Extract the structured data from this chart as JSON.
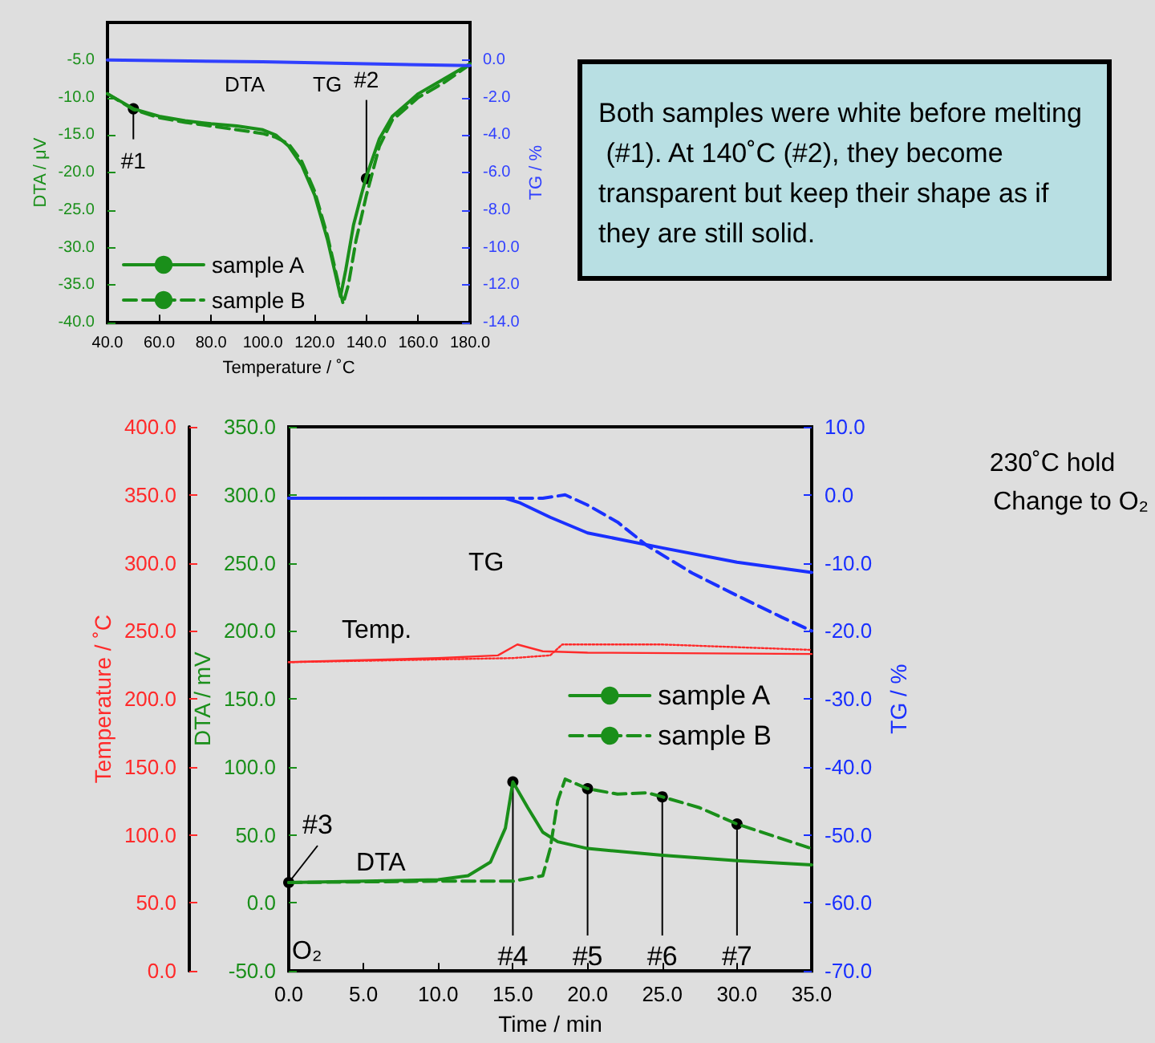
{
  "chart_data": [
    {
      "type": "line",
      "xlabel": "Temperature / ˚C",
      "ylabel": "DTA / μV",
      "y2label": "TG / %",
      "legend": "bottom left",
      "grid": false,
      "marker": "none",
      "xlim": [
        40,
        180
      ],
      "xticks": [
        {
          "value": 40,
          "label": "40.0"
        },
        {
          "value": 60,
          "label": "60.0"
        },
        {
          "value": 80,
          "label": "80.0"
        },
        {
          "value": 100,
          "label": "100.0"
        },
        {
          "value": 120,
          "label": "120.0"
        },
        {
          "value": 140,
          "label": "140.0"
        },
        {
          "value": 160,
          "label": "160.0"
        },
        {
          "value": 180,
          "label": "180.0"
        }
      ],
      "ylim": [
        -40,
        0
      ],
      "yticks": [
        {
          "value": -40,
          "label": "-40.0"
        },
        {
          "value": -35,
          "label": "-35.0"
        },
        {
          "value": -30,
          "label": "-30.0"
        },
        {
          "value": -25,
          "label": "-25.0"
        },
        {
          "value": -20,
          "label": "-20.0"
        },
        {
          "value": -15,
          "label": "-15.0"
        },
        {
          "value": -10,
          "label": "-10.0"
        },
        {
          "value": -5,
          "label": "-5.0"
        }
      ],
      "y2lim": [
        -14,
        2
      ],
      "y2ticks": [
        {
          "value": -14,
          "label": "-14.0"
        },
        {
          "value": -12,
          "label": "-12.0"
        },
        {
          "value": -10,
          "label": "-10.0"
        },
        {
          "value": -8,
          "label": "-8.0"
        },
        {
          "value": -6,
          "label": "-6.0"
        },
        {
          "value": -4,
          "label": "-4.0"
        },
        {
          "value": -2,
          "label": "-2.0"
        },
        {
          "value": 0,
          "label": "0.0"
        }
      ],
      "series": [
        {
          "name": "sample A",
          "color": "#1a8f1a",
          "line_style": "solid",
          "x": [
            40,
            50,
            60,
            70,
            80,
            90,
            100,
            105,
            110,
            115,
            120,
            125,
            128,
            130,
            132,
            135,
            138,
            140,
            145,
            150,
            160,
            170,
            180
          ],
          "values": [
            -9.5,
            -11.5,
            -12.5,
            -13.1,
            -13.5,
            -13.8,
            -14.3,
            -15,
            -16.5,
            -19,
            -23,
            -29,
            -33.5,
            -36.5,
            -33,
            -27,
            -23,
            -20.5,
            -15.5,
            -12.5,
            -9.5,
            -7.5,
            -5.5
          ]
        },
        {
          "name": "sample B",
          "color": "#1a8f1a",
          "line_style": "dashed",
          "x": [
            40,
            50,
            60,
            70,
            80,
            90,
            100,
            105,
            110,
            115,
            120,
            125,
            128,
            131,
            133,
            136,
            140,
            145,
            150,
            160,
            170,
            180
          ],
          "values": [
            -9.5,
            -11.6,
            -12.7,
            -13.3,
            -13.8,
            -14.3,
            -14.8,
            -15.3,
            -16.2,
            -18.5,
            -22.5,
            -28.5,
            -33,
            -37.5,
            -35,
            -29,
            -23,
            -16.5,
            -13,
            -10,
            -8,
            -5.6
          ]
        },
        {
          "color": "#3040ff",
          "line_style": "solid",
          "axis": "y2",
          "x": [
            40,
            100,
            140,
            180
          ],
          "values": [
            0,
            -0.1,
            -0.2,
            -0.3
          ]
        }
      ],
      "annotations": [
        "DTA",
        "TG",
        {
          "text": "#1",
          "x": 50,
          "y": -11.5
        },
        {
          "text": "#2",
          "x": 140,
          "y": -20.8
        },
        "Both samples were white before melting (#1). At 140˚C (#2), they become transparent but keep their shape as if they are still solid."
      ]
    },
    {
      "type": "line",
      "xlabel": "Time / min",
      "ylabel": "DTA / mV",
      "y2label": "TG / %",
      "y3label": "Temperature / ˚C",
      "legend": "right",
      "grid": false,
      "marker": "none",
      "xlim": [
        0,
        35
      ],
      "xticks": [
        {
          "value": 0,
          "label": "0.0"
        },
        {
          "value": 5,
          "label": "5.0"
        },
        {
          "value": 10,
          "label": "10.0"
        },
        {
          "value": 15,
          "label": "15.0"
        },
        {
          "value": 20,
          "label": "20.0"
        },
        {
          "value": 25,
          "label": "25.0"
        },
        {
          "value": 30,
          "label": "30.0"
        },
        {
          "value": 35,
          "label": "35.0"
        }
      ],
      "ylim": [
        -50,
        350
      ],
      "yticks": [
        {
          "value": -50,
          "label": "-50.0"
        },
        {
          "value": 0,
          "label": "0.0"
        },
        {
          "value": 50,
          "label": "50.0"
        },
        {
          "value": 100,
          "label": "100.0"
        },
        {
          "value": 150,
          "label": "150.0"
        },
        {
          "value": 200,
          "label": "200.0"
        },
        {
          "value": 250,
          "label": "250.0"
        },
        {
          "value": 300,
          "label": "300.0"
        },
        {
          "value": 350,
          "label": "350.0"
        }
      ],
      "y2lim": [
        -70,
        10
      ],
      "y2ticks": [
        {
          "value": -70,
          "label": "-70.0"
        },
        {
          "value": -60,
          "label": "-60.0"
        },
        {
          "value": -50,
          "label": "-50.0"
        },
        {
          "value": -40,
          "label": "-40.0"
        },
        {
          "value": -30,
          "label": "-30.0"
        },
        {
          "value": -20,
          "label": "-20.0"
        },
        {
          "value": -10,
          "label": "-10.0"
        },
        {
          "value": 0,
          "label": "0.0"
        },
        {
          "value": 10,
          "label": "10.0"
        }
      ],
      "y3lim": [
        0,
        400
      ],
      "y3ticks": [
        {
          "value": 0,
          "label": "0.0"
        },
        {
          "value": 50,
          "label": "50.0"
        },
        {
          "value": 100,
          "label": "100.0"
        },
        {
          "value": 150,
          "label": "150.0"
        },
        {
          "value": 200,
          "label": "200.0"
        },
        {
          "value": 250,
          "label": "250.0"
        },
        {
          "value": 300,
          "label": "300.0"
        },
        {
          "value": 350,
          "label": "350.0"
        },
        {
          "value": 400,
          "label": "400.0"
        }
      ],
      "series": [
        {
          "name": "sample A",
          "color": "#1a8f1a",
          "line_style": "solid",
          "x": [
            0,
            10,
            12,
            13.5,
            14.5,
            15,
            16,
            17,
            18,
            20,
            25,
            30,
            35
          ],
          "values": [
            15,
            17,
            20,
            30,
            55,
            89,
            70,
            52,
            45,
            40,
            35,
            31,
            28
          ]
        },
        {
          "name": "sample B",
          "color": "#1a8f1a",
          "line_style": "dashed",
          "x": [
            0,
            10,
            15,
            17,
            17.5,
            18,
            18.5,
            20,
            22,
            24,
            25,
            27.5,
            30,
            32.5,
            35
          ],
          "values": [
            15,
            16,
            16,
            20,
            40,
            75,
            91,
            84,
            80,
            81,
            78,
            70,
            58,
            49,
            40
          ]
        },
        {
          "color": "#1a30ff",
          "line_style": "solid",
          "axis": "y2",
          "x": [
            0,
            14.5,
            15.5,
            17.5,
            20,
            25,
            30,
            35
          ],
          "values": [
            -0.5,
            -0.5,
            -1.2,
            -3.3,
            -5.6,
            -7.8,
            -9.9,
            -11.4
          ]
        },
        {
          "color": "#1a30ff",
          "line_style": "dashed",
          "axis": "y2",
          "x": [
            0,
            17,
            18.5,
            20,
            22,
            24,
            27,
            30,
            33,
            35
          ],
          "values": [
            -0.5,
            -0.5,
            0,
            -1.5,
            -4,
            -7.5,
            -11.5,
            -14.8,
            -18,
            -20
          ]
        },
        {
          "color": "#ff2a2a",
          "line_style": "solid",
          "axis": "y3",
          "x": [
            0,
            10,
            14,
            15.3,
            17,
            20,
            35
          ],
          "values": [
            227,
            230,
            232,
            240,
            235,
            234,
            233
          ]
        },
        {
          "color": "#ff2a2a",
          "line_style": "dotted",
          "axis": "y3",
          "x": [
            0,
            15,
            17.5,
            18.3,
            25,
            35
          ],
          "values": [
            227,
            230,
            232,
            240,
            240,
            236
          ]
        }
      ],
      "annotations": [
        "TG",
        "Temp.",
        "DTA",
        {
          "text": "#3",
          "x": 0,
          "y": 15
        },
        {
          "text": "#4",
          "x": 15,
          "y": 89
        },
        {
          "text": "#5",
          "x": 20,
          "y": 84
        },
        {
          "text": "#6",
          "x": 25,
          "y": 78
        },
        {
          "text": "#7",
          "x": 30,
          "y": 58
        },
        "O₂",
        "230˚C hold",
        "Change to O₂"
      ]
    }
  ]
}
